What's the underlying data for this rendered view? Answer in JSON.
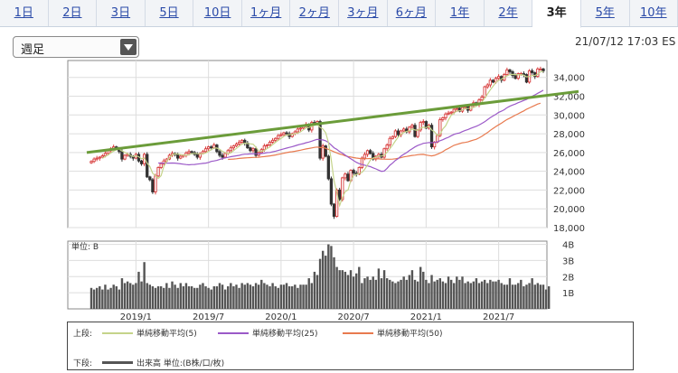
{
  "tabs": [
    "1日",
    "2日",
    "3日",
    "5日",
    "10日",
    "1ヶ月",
    "2ヶ月",
    "3ヶ月",
    "6ヶ月",
    "1年",
    "2年",
    "3年",
    "5年",
    "10年"
  ],
  "active_tab": "3年",
  "period_select": {
    "value": "週足"
  },
  "timestamp": "21/07/12 17:03 ES",
  "colors": {
    "up": "#d83c3c",
    "down": "#333333",
    "ma5": "#c5d48a",
    "ma25": "#9b59c8",
    "ma50": "#e87a4f",
    "trend": "#6b9c3a",
    "volume": "#555555"
  },
  "legend": {
    "upper_label": "上段:",
    "lower_label": "下段:",
    "ma5": "単純移動平均(5)",
    "ma25": "単純移動平均(25)",
    "ma50": "単純移動平均(50)",
    "volume": "出来高 単位:(B株/口/枚)"
  },
  "chart_data": {
    "type": "candlestick",
    "interval": "weekly",
    "x_tick_labels": [
      "2019/1",
      "2019/7",
      "2020/1",
      "2020/7",
      "2021/1",
      "2021/7"
    ],
    "price_axis": {
      "ticks": [
        "34,000",
        "32,000",
        "30,000",
        "28,000",
        "26,000",
        "24,000",
        "22,000",
        "20,000",
        "18,000"
      ],
      "range": [
        18000,
        35800
      ]
    },
    "volume_axis": {
      "unit_label": "単位: B",
      "ticks": [
        "4B",
        "3B",
        "2B",
        "1B"
      ],
      "range": [
        0,
        4.2
      ]
    },
    "closes": [
      25050,
      25300,
      25400,
      25500,
      25650,
      25900,
      26200,
      26400,
      26600,
      26400,
      26100,
      25300,
      25700,
      25800,
      25600,
      25400,
      25800,
      25100,
      24800,
      25800,
      23400,
      23100,
      21800,
      23500,
      24400,
      24800,
      25100,
      25300,
      25700,
      25900,
      25800,
      25400,
      25600,
      25700,
      25950,
      26100,
      26000,
      25800,
      25500,
      25900,
      26100,
      26400,
      26600,
      26500,
      26800,
      26100,
      25700,
      25500,
      25900,
      26200,
      26500,
      26700,
      26900,
      27100,
      27300,
      27000,
      26500,
      26200,
      26400,
      25700,
      26000,
      26300,
      26700,
      26800,
      27100,
      27300,
      27500,
      27800,
      27900,
      28100,
      28000,
      27700,
      28000,
      28200,
      28500,
      28600,
      28800,
      29000,
      28400,
      29200,
      29100,
      29300,
      25400,
      26700,
      25600,
      23200,
      20500,
      19200,
      22000,
      21000,
      23300,
      23700,
      23000,
      24100,
      23800,
      23700,
      24400,
      25400,
      25800,
      26200,
      25900,
      25300,
      25600,
      25800,
      25500,
      26400,
      26800,
      27500,
      27700,
      28300,
      27900,
      28300,
      28500,
      28200,
      28700,
      28900,
      27700,
      28400,
      29200,
      29300,
      28600,
      28900,
      26600,
      27100,
      27800,
      29500,
      29700,
      30100,
      30200,
      30300,
      30600,
      30700,
      30400,
      30800,
      30900,
      30500,
      31000,
      31300,
      31100,
      31600,
      31900,
      33000,
      33200,
      33700,
      33500,
      33900,
      34100,
      33700,
      34300,
      34800,
      34600,
      34200,
      33900,
      34400,
      34400,
      34300,
      33500,
      34700,
      34500,
      34100,
      34900,
      34900,
      34700
    ],
    "ma5": [
      null,
      null,
      null,
      null,
      25380,
      25560,
      25750,
      25950,
      26150,
      26300,
      26340,
      26160,
      26020,
      25860,
      25700,
      25560,
      25660,
      25540,
      25340,
      25420,
      24880,
      24500,
      23780,
      23520,
      23240,
      23520,
      24520,
      25020,
      25460,
      25740,
      25860,
      25820,
      25780,
      25700,
      25710,
      25770,
      25870,
      25910,
      25870,
      25860,
      25860,
      25940,
      26120,
      26300,
      26480,
      26480,
      26340,
      26120,
      26000,
      25880,
      25960,
      26200,
      26440,
      26680,
      26900,
      27000,
      26960,
      26920,
      26880,
      26560,
      26160,
      26120,
      26220,
      26420,
      26580,
      26840,
      27080,
      27300,
      27500,
      27720,
      27860,
      27900,
      27940,
      28000,
      28080,
      28200,
      28420,
      28620,
      28660,
      28800,
      28900,
      29000,
      28680,
      28500,
      28100,
      27080,
      25240,
      23000,
      21700,
      20340,
      21200,
      21840,
      22000,
      23000,
      23540,
      23660,
      23760,
      23880,
      24220,
      24700,
      25180,
      25420,
      25500,
      25640,
      25620,
      25720,
      26020,
      26400,
      26780,
      27240,
      27640,
      27940,
      28140,
      28240,
      28320,
      28520,
      28400,
      28340,
      28580,
      28700,
      28640,
      28820,
      28400,
      28200,
      27800,
      27940,
      28520,
      28840,
      29460,
      29960,
      30180,
      30420,
      30440,
      30560,
      30680,
      30680,
      30720,
      30800,
      30940,
      31100,
      31380,
      31780,
      32240,
      32680,
      33060,
      33460,
      33680,
      33800,
      34000,
      34160,
      34300,
      34320,
      34300,
      34280,
      34300,
      34240,
      34060,
      34100,
      34200,
      34200,
      34340,
      34620,
      34620
    ],
    "ma25": [
      null,
      null,
      null,
      null,
      null,
      null,
      null,
      null,
      null,
      null,
      null,
      null,
      null,
      null,
      null,
      null,
      null,
      null,
      null,
      null,
      null,
      null,
      null,
      null,
      24880,
      24870,
      24860,
      24860,
      24870,
      24880,
      24870,
      24830,
      24790,
      24750,
      24720,
      24690,
      24720,
      24730,
      24760,
      24800,
      24840,
      24870,
      24940,
      25050,
      25100,
      25160,
      25250,
      25360,
      25430,
      25490,
      25550,
      25600,
      25650,
      25700,
      25770,
      25820,
      25830,
      25850,
      25870,
      25860,
      25870,
      25900,
      25930,
      25990,
      26010,
      26070,
      26140,
      26220,
      26300,
      26390,
      26470,
      26540,
      26620,
      26710,
      26800,
      26880,
      26950,
      27040,
      27110,
      27210,
      27310,
      27400,
      27350,
      27340,
      27250,
      27060,
      26790,
      26510,
      26330,
      26100,
      25930,
      25730,
      25510,
      25330,
      25140,
      24960,
      24810,
      24730,
      24650,
      24570,
      24490,
      24370,
      24250,
      24120,
      23990,
      24030,
      24310,
      24640,
      24870,
      25160,
      25350,
      25610,
      25810,
      25990,
      26220,
      26400,
      26590,
      26750,
      26850,
      26980,
      27020,
      27060,
      27040,
      27060,
      27130,
      27260,
      27360,
      27510,
      27620,
      27790,
      27930,
      28030,
      28080,
      28230,
      28350,
      28450,
      28570,
      28690,
      28800,
      28930,
      29100,
      29280,
      29500,
      29720,
      29890,
      30070,
      30280,
      30400,
      30560,
      30780,
      30930,
      31060,
      31160,
      31310,
      31410,
      31550,
      31650,
      31840,
      32000,
      32130,
      32310,
      32460,
      32630
    ],
    "ma50": [
      null,
      null,
      null,
      null,
      null,
      null,
      null,
      null,
      null,
      null,
      null,
      null,
      null,
      null,
      null,
      null,
      null,
      null,
      null,
      null,
      null,
      null,
      null,
      null,
      null,
      null,
      null,
      null,
      null,
      null,
      null,
      null,
      null,
      null,
      null,
      null,
      null,
      null,
      null,
      null,
      null,
      null,
      null,
      null,
      null,
      null,
      null,
      null,
      null,
      25260,
      25280,
      25300,
      25330,
      25370,
      25400,
      25420,
      25440,
      25460,
      25480,
      25490,
      25500,
      25530,
      25560,
      25600,
      25640,
      25690,
      25740,
      25800,
      25860,
      25930,
      25990,
      26040,
      26080,
      26130,
      26190,
      26250,
      26310,
      26380,
      26430,
      26490,
      26540,
      26580,
      26520,
      26520,
      26450,
      26330,
      26210,
      26070,
      25960,
      25840,
      25760,
      25650,
      25570,
      25520,
      25460,
      25410,
      25370,
      25350,
      25340,
      25340,
      25360,
      25360,
      25340,
      25320,
      25300,
      25290,
      25280,
      25280,
      25290,
      25330,
      25390,
      25450,
      25530,
      25580,
      25640,
      25690,
      25720,
      25760,
      25790,
      25800,
      25730,
      25680,
      25640,
      25700,
      25810,
      25950,
      26090,
      26290,
      26440,
      26600,
      26770,
      26860,
      26950,
      27030,
      27070,
      27130,
      27240,
      27320,
      27410,
      27560,
      27730,
      27940,
      28120,
      28360,
      28560,
      28770,
      28950,
      29120,
      29330,
      29520,
      29660,
      29820,
      29980,
      30120,
      30290,
      30430,
      30610,
      30750,
      30880,
      31020,
      31160,
      31250
    ],
    "volume": [
      1.3,
      1.2,
      1.3,
      1.4,
      1.2,
      1.5,
      1.2,
      1.3,
      1.5,
      1.4,
      1.2,
      1.9,
      1.6,
      1.7,
      1.6,
      1.5,
      1.6,
      2.3,
      1.7,
      2.9,
      1.6,
      1.5,
      1.4,
      1.3,
      1.4,
      1.4,
      1.3,
      1.6,
      1.3,
      1.7,
      1.5,
      1.3,
      1.6,
      1.4,
      1.6,
      1.4,
      1.4,
      1.3,
      1.3,
      1.5,
      1.6,
      1.4,
      1.3,
      1.2,
      1.4,
      1.4,
      1.6,
      1.5,
      1.2,
      1.4,
      1.6,
      1.4,
      1.5,
      1.3,
      1.6,
      1.5,
      1.6,
      1.5,
      1.4,
      1.6,
      1.5,
      1.8,
      1.6,
      1.5,
      1.4,
      1.6,
      1.4,
      1.3,
      1.5,
      1.5,
      1.6,
      1.4,
      1.4,
      1.5,
      1.3,
      1.5,
      1.5,
      1.5,
      1.9,
      1.6,
      2.3,
      2.1,
      3.1,
      3.6,
      3.3,
      4.0,
      3.9,
      3.2,
      2.6,
      2.4,
      2.4,
      2.3,
      2.1,
      2.4,
      2.0,
      2.2,
      2.6,
      1.6,
      1.9,
      2.0,
      1.8,
      2.0,
      1.8,
      2.5,
      1.9,
      2.4,
      1.9,
      1.8,
      1.7,
      1.6,
      1.7,
      1.8,
      2.0,
      1.8,
      2.1,
      2.4,
      1.8,
      1.7,
      2.6,
      2.3,
      1.8,
      1.6,
      2.1,
      1.7,
      1.8,
      1.9,
      1.7,
      1.6,
      2.0,
      1.8,
      1.6,
      2.0,
      1.8,
      2.0,
      1.6,
      1.7,
      1.6,
      1.7,
      1.9,
      1.6,
      1.7,
      1.8,
      1.6,
      1.8,
      1.7,
      1.7,
      1.8,
      1.6,
      1.5,
      1.5,
      1.9,
      1.5,
      1.5,
      1.6,
      1.8,
      1.4,
      1.5,
      1.6,
      1.9,
      1.5,
      1.6,
      1.5,
      1.5,
      1.2,
      1.4
    ]
  }
}
